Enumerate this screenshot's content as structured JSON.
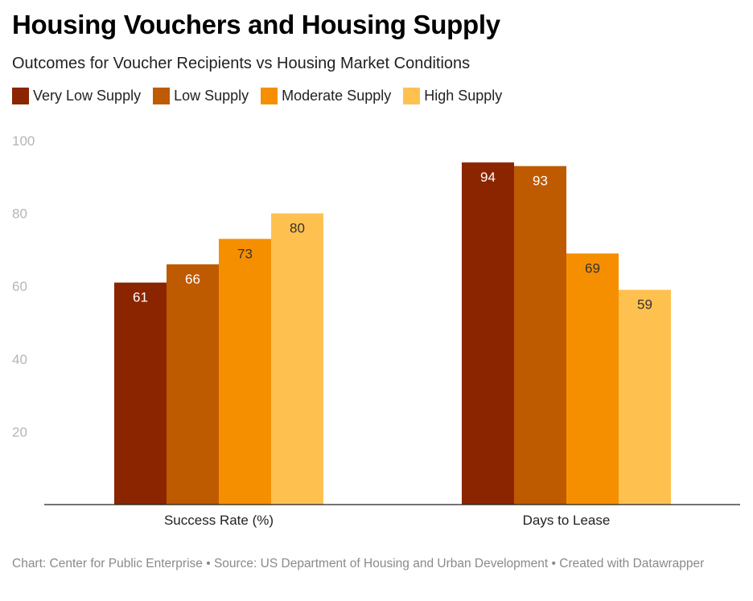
{
  "title": "Housing Vouchers and Housing Supply",
  "subtitle": "Outcomes for Voucher Recipients vs Housing Market Conditions",
  "footer": "Chart: Center for Public Enterprise • Source: US Department of Housing and Urban Development • Created with Datawrapper",
  "chart_data": {
    "type": "bar",
    "categories": [
      "Success Rate (%)",
      "Days to Lease"
    ],
    "series": [
      {
        "name": "Very Low Supply",
        "color": "#8b2500",
        "values": [
          61,
          94
        ]
      },
      {
        "name": "Low Supply",
        "color": "#be5a00",
        "values": [
          66,
          93
        ]
      },
      {
        "name": "Moderate Supply",
        "color": "#f68f00",
        "values": [
          73,
          69
        ]
      },
      {
        "name": "High Supply",
        "color": "#fec150",
        "values": [
          80,
          59
        ]
      }
    ],
    "yticks": [
      20,
      40,
      60,
      80,
      100
    ],
    "ylim": [
      0,
      100
    ],
    "grid": false,
    "legend": "top-left"
  }
}
